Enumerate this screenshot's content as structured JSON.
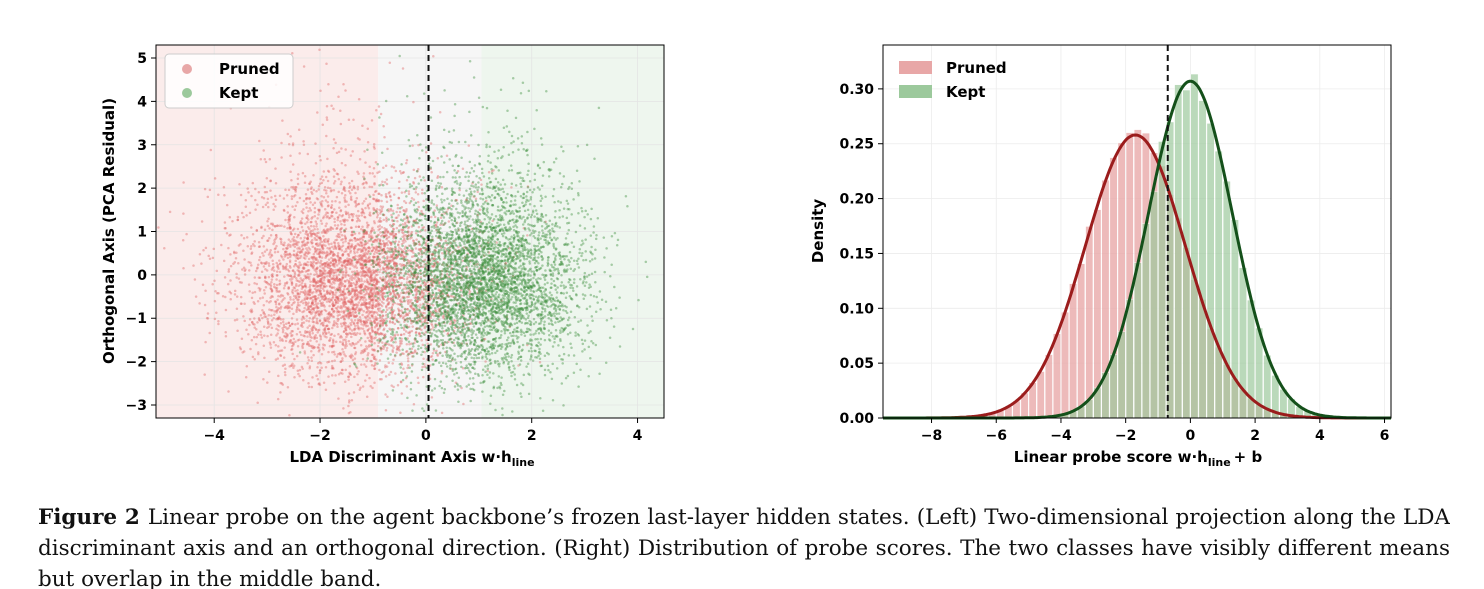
{
  "figure_label": "Figure 2",
  "caption_text": "Linear probe on the agent backbone’s frozen last-layer hidden states. (Left) Two-dimensional projection along the LDA discriminant axis and an orthogonal direction. (Right) Distribution of probe scores. The two classes have visibly different means but overlap in the middle band.",
  "colors": {
    "pruned": "#e06666",
    "pruned_fill": "#e8a7a7",
    "kept": "#4c9a4c",
    "kept_fill": "#9cc99c",
    "pruned_curve": "#9b1c1c",
    "kept_curve": "#14501a"
  },
  "chart_data": [
    {
      "type": "scatter",
      "xlabel": "LDA Discriminant Axis  w·h",
      "xlabel_sub": "line",
      "ylabel": "Orthogonal Axis (PCA Residual)",
      "xlim": [
        -5.1,
        4.5
      ],
      "ylim": [
        -3.3,
        5.3
      ],
      "xticks": [
        -4,
        -2,
        0,
        2,
        4
      ],
      "xtick_labels": [
        "−4",
        "−2",
        "0",
        "2",
        "4"
      ],
      "yticks": [
        -3,
        -2,
        -1,
        0,
        1,
        2,
        3,
        4,
        5
      ],
      "ytick_labels": [
        "−3",
        "−2",
        "−1",
        "0",
        "1",
        "2",
        "3",
        "4",
        "5"
      ],
      "threshold_x": 0.05,
      "regions": [
        {
          "x0": -5.1,
          "x1": -0.9,
          "color": "#fbeceb"
        },
        {
          "x0": -0.9,
          "x1": 1.05,
          "color": "#f6f6f6"
        },
        {
          "x0": 1.05,
          "x1": 4.5,
          "color": "#eef6ee"
        }
      ],
      "legend_position": "top-left",
      "grid": true,
      "series": [
        {
          "name": "Pruned",
          "color": "#e06666",
          "n_points": 4500,
          "x_center": -1.4,
          "x_spread": 1.05,
          "y_center": -0.2,
          "y_spread": 1.05
        },
        {
          "name": "Kept",
          "color": "#3f8f3f",
          "n_points": 4500,
          "x_center": 1.1,
          "x_spread": 0.9,
          "y_center": -0.2,
          "y_spread": 1.05
        }
      ]
    },
    {
      "type": "histogram",
      "xlabel": "Linear probe score   w·h",
      "xlabel_sub": "line",
      "xlabel_tail": "+ b",
      "ylabel": "Density",
      "xlim": [
        -9.5,
        6.2
      ],
      "ylim": [
        0,
        0.34
      ],
      "xticks": [
        -8,
        -6,
        -4,
        -2,
        0,
        2,
        4,
        6
      ],
      "xtick_labels": [
        "−8",
        "−6",
        "−4",
        "−2",
        "0",
        "2",
        "4",
        "6"
      ],
      "yticks": [
        0,
        0.05,
        0.1,
        0.15,
        0.2,
        0.25,
        0.3
      ],
      "ytick_labels": [
        "0.00",
        "0.05",
        "0.10",
        "0.15",
        "0.20",
        "0.25",
        "0.30"
      ],
      "threshold_x": -0.7,
      "legend_position": "top-left",
      "grid": true,
      "bin_width": 0.25,
      "series": [
        {
          "name": "Pruned",
          "color": "#e8a7a7",
          "curve_color": "#9b1c1c",
          "mean": -1.7,
          "std": 1.55,
          "peak_density": 0.258,
          "range": [
            -9,
            3.5
          ]
        },
        {
          "name": "Kept",
          "color": "#9cc99c",
          "curve_color": "#14501a",
          "mean": 0.0,
          "std": 1.3,
          "peak_density": 0.307,
          "range": [
            -6,
            6
          ]
        }
      ]
    }
  ]
}
